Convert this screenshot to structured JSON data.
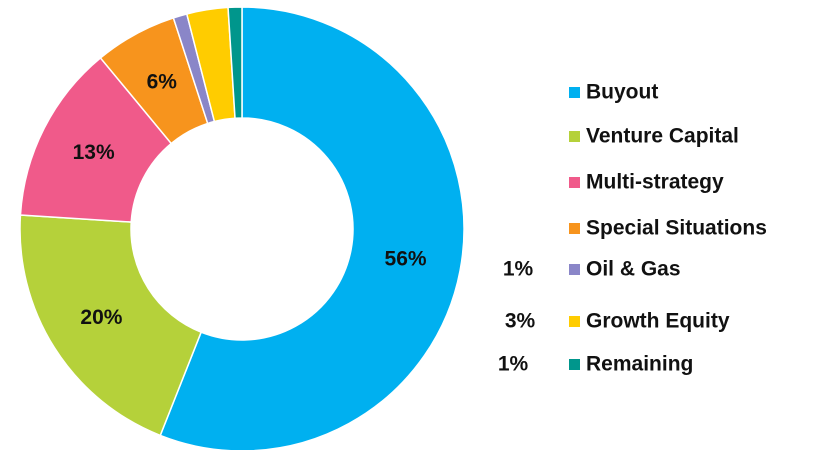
{
  "chart_data": {
    "type": "donut",
    "categories": [
      "Buyout",
      "Venture Capital",
      "Multi-strategy",
      "Special Situations",
      "Oil & Gas",
      "Growth Equity",
      "Remaining"
    ],
    "values": [
      56,
      20,
      13,
      6,
      1,
      3,
      1
    ],
    "value_labels": [
      "56%",
      "20%",
      "13%",
      "6%",
      "1%",
      "3%",
      "1%"
    ],
    "colors": [
      "#00b0f0",
      "#b5d13a",
      "#f05a8a",
      "#f7941d",
      "#8a86c8",
      "#ffcc00",
      "#00968c"
    ],
    "legend": "right"
  }
}
